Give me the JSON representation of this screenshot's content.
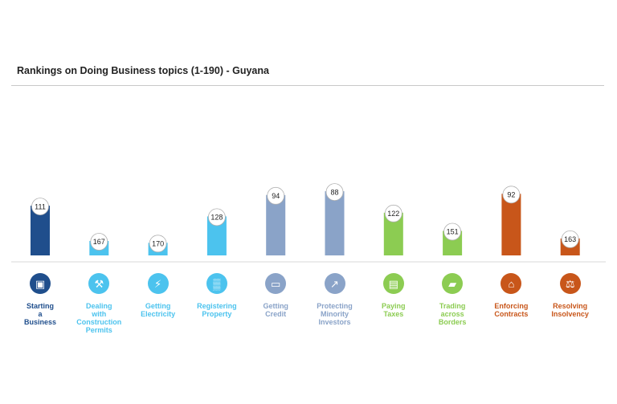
{
  "chart_data": {
    "type": "bar",
    "title": "Rankings on Doing Business topics (1-190) - Guyana",
    "categories": [
      "Starting\na\nBusiness",
      "Dealing\nwith\nConstruction\nPermits",
      "Getting\nElectricity",
      "Registering\nProperty",
      "Getting\nCredit",
      "Protecting\nMinority\nInvestors",
      "Paying\nTaxes",
      "Trading\nacross\nBorders",
      "Enforcing\nContracts",
      "Resolving\nInsolvency"
    ],
    "values": [
      111,
      167,
      170,
      128,
      94,
      88,
      122,
      151,
      92,
      163
    ],
    "colors": [
      "#1f4e8c",
      "#4cc3ee",
      "#4cc3ee",
      "#4cc3ee",
      "#8aa3c8",
      "#8aa3c8",
      "#8ccc52",
      "#8ccc52",
      "#c8561a",
      "#c8561a"
    ],
    "icons": [
      "building-icon",
      "tools-icon",
      "lightning-icon",
      "buildings-icon",
      "credit-card-icon",
      "trend-chart-icon",
      "money-icon",
      "truck-icon",
      "courthouse-icon",
      "gavel-icon"
    ],
    "ylim": [
      1,
      190
    ],
    "grid": false,
    "legend": "none"
  }
}
